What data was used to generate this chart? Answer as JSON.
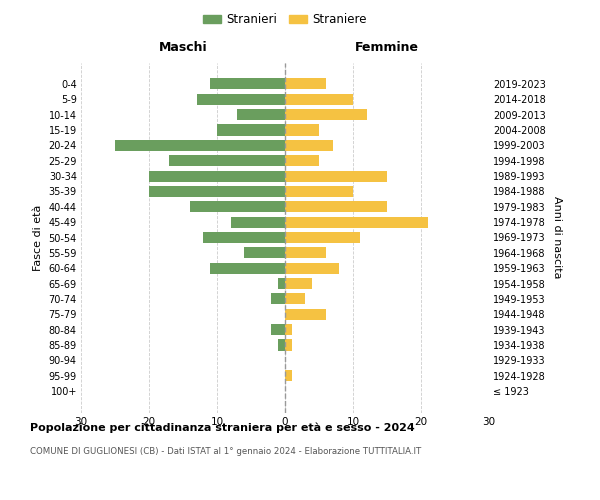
{
  "age_groups": [
    "100+",
    "95-99",
    "90-94",
    "85-89",
    "80-84",
    "75-79",
    "70-74",
    "65-69",
    "60-64",
    "55-59",
    "50-54",
    "45-49",
    "40-44",
    "35-39",
    "30-34",
    "25-29",
    "20-24",
    "15-19",
    "10-14",
    "5-9",
    "0-4"
  ],
  "birth_years": [
    "≤ 1923",
    "1924-1928",
    "1929-1933",
    "1934-1938",
    "1939-1943",
    "1944-1948",
    "1949-1953",
    "1954-1958",
    "1959-1963",
    "1964-1968",
    "1969-1973",
    "1974-1978",
    "1979-1983",
    "1984-1988",
    "1989-1993",
    "1994-1998",
    "1999-2003",
    "2004-2008",
    "2009-2013",
    "2014-2018",
    "2019-2023"
  ],
  "males": [
    0,
    0,
    0,
    1,
    2,
    0,
    2,
    1,
    11,
    6,
    12,
    8,
    14,
    20,
    20,
    17,
    25,
    10,
    7,
    13,
    11
  ],
  "females": [
    0,
    1,
    0,
    1,
    1,
    6,
    3,
    4,
    8,
    6,
    11,
    21,
    15,
    10,
    15,
    5,
    7,
    5,
    12,
    10,
    6
  ],
  "male_color": "#6a9e5e",
  "female_color": "#f5c242",
  "background_color": "#ffffff",
  "grid_color": "#cccccc",
  "title": "Popolazione per cittadinanza straniera per età e sesso - 2024",
  "subtitle": "COMUNE DI GUGLIONESI (CB) - Dati ISTAT al 1° gennaio 2024 - Elaborazione TUTTITALIA.IT",
  "ylabel_left": "Fasce di età",
  "ylabel_right": "Anni di nascita",
  "legend_male": "Stranieri",
  "legend_female": "Straniere",
  "xlim": 30,
  "maschi_label": "Maschi",
  "femmine_label": "Femmine"
}
